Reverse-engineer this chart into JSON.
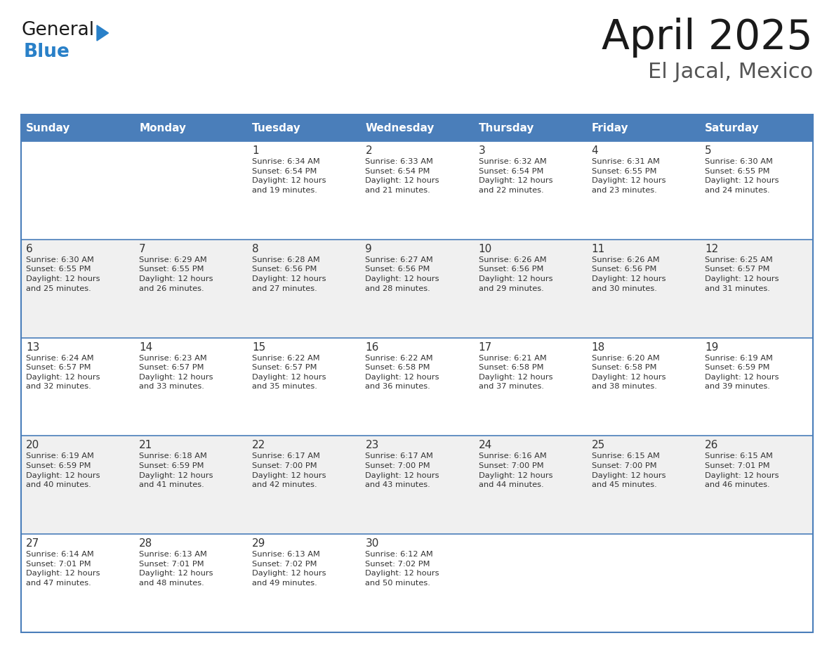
{
  "title": "April 2025",
  "subtitle": "El Jacal, Mexico",
  "header_color": "#4A7EBA",
  "header_text_color": "#FFFFFF",
  "cell_bg_light": "#F0F0F0",
  "cell_bg_white": "#FFFFFF",
  "cell_text_color": "#333333",
  "day_headers": [
    "Sunday",
    "Monday",
    "Tuesday",
    "Wednesday",
    "Thursday",
    "Friday",
    "Saturday"
  ],
  "weeks": [
    [
      {
        "day": "",
        "info": ""
      },
      {
        "day": "",
        "info": ""
      },
      {
        "day": "1",
        "info": "Sunrise: 6:34 AM\nSunset: 6:54 PM\nDaylight: 12 hours\nand 19 minutes."
      },
      {
        "day": "2",
        "info": "Sunrise: 6:33 AM\nSunset: 6:54 PM\nDaylight: 12 hours\nand 21 minutes."
      },
      {
        "day": "3",
        "info": "Sunrise: 6:32 AM\nSunset: 6:54 PM\nDaylight: 12 hours\nand 22 minutes."
      },
      {
        "day": "4",
        "info": "Sunrise: 6:31 AM\nSunset: 6:55 PM\nDaylight: 12 hours\nand 23 minutes."
      },
      {
        "day": "5",
        "info": "Sunrise: 6:30 AM\nSunset: 6:55 PM\nDaylight: 12 hours\nand 24 minutes."
      }
    ],
    [
      {
        "day": "6",
        "info": "Sunrise: 6:30 AM\nSunset: 6:55 PM\nDaylight: 12 hours\nand 25 minutes."
      },
      {
        "day": "7",
        "info": "Sunrise: 6:29 AM\nSunset: 6:55 PM\nDaylight: 12 hours\nand 26 minutes."
      },
      {
        "day": "8",
        "info": "Sunrise: 6:28 AM\nSunset: 6:56 PM\nDaylight: 12 hours\nand 27 minutes."
      },
      {
        "day": "9",
        "info": "Sunrise: 6:27 AM\nSunset: 6:56 PM\nDaylight: 12 hours\nand 28 minutes."
      },
      {
        "day": "10",
        "info": "Sunrise: 6:26 AM\nSunset: 6:56 PM\nDaylight: 12 hours\nand 29 minutes."
      },
      {
        "day": "11",
        "info": "Sunrise: 6:26 AM\nSunset: 6:56 PM\nDaylight: 12 hours\nand 30 minutes."
      },
      {
        "day": "12",
        "info": "Sunrise: 6:25 AM\nSunset: 6:57 PM\nDaylight: 12 hours\nand 31 minutes."
      }
    ],
    [
      {
        "day": "13",
        "info": "Sunrise: 6:24 AM\nSunset: 6:57 PM\nDaylight: 12 hours\nand 32 minutes."
      },
      {
        "day": "14",
        "info": "Sunrise: 6:23 AM\nSunset: 6:57 PM\nDaylight: 12 hours\nand 33 minutes."
      },
      {
        "day": "15",
        "info": "Sunrise: 6:22 AM\nSunset: 6:57 PM\nDaylight: 12 hours\nand 35 minutes."
      },
      {
        "day": "16",
        "info": "Sunrise: 6:22 AM\nSunset: 6:58 PM\nDaylight: 12 hours\nand 36 minutes."
      },
      {
        "day": "17",
        "info": "Sunrise: 6:21 AM\nSunset: 6:58 PM\nDaylight: 12 hours\nand 37 minutes."
      },
      {
        "day": "18",
        "info": "Sunrise: 6:20 AM\nSunset: 6:58 PM\nDaylight: 12 hours\nand 38 minutes."
      },
      {
        "day": "19",
        "info": "Sunrise: 6:19 AM\nSunset: 6:59 PM\nDaylight: 12 hours\nand 39 minutes."
      }
    ],
    [
      {
        "day": "20",
        "info": "Sunrise: 6:19 AM\nSunset: 6:59 PM\nDaylight: 12 hours\nand 40 minutes."
      },
      {
        "day": "21",
        "info": "Sunrise: 6:18 AM\nSunset: 6:59 PM\nDaylight: 12 hours\nand 41 minutes."
      },
      {
        "day": "22",
        "info": "Sunrise: 6:17 AM\nSunset: 7:00 PM\nDaylight: 12 hours\nand 42 minutes."
      },
      {
        "day": "23",
        "info": "Sunrise: 6:17 AM\nSunset: 7:00 PM\nDaylight: 12 hours\nand 43 minutes."
      },
      {
        "day": "24",
        "info": "Sunrise: 6:16 AM\nSunset: 7:00 PM\nDaylight: 12 hours\nand 44 minutes."
      },
      {
        "day": "25",
        "info": "Sunrise: 6:15 AM\nSunset: 7:00 PM\nDaylight: 12 hours\nand 45 minutes."
      },
      {
        "day": "26",
        "info": "Sunrise: 6:15 AM\nSunset: 7:01 PM\nDaylight: 12 hours\nand 46 minutes."
      }
    ],
    [
      {
        "day": "27",
        "info": "Sunrise: 6:14 AM\nSunset: 7:01 PM\nDaylight: 12 hours\nand 47 minutes."
      },
      {
        "day": "28",
        "info": "Sunrise: 6:13 AM\nSunset: 7:01 PM\nDaylight: 12 hours\nand 48 minutes."
      },
      {
        "day": "29",
        "info": "Sunrise: 6:13 AM\nSunset: 7:02 PM\nDaylight: 12 hours\nand 49 minutes."
      },
      {
        "day": "30",
        "info": "Sunrise: 6:12 AM\nSunset: 7:02 PM\nDaylight: 12 hours\nand 50 minutes."
      },
      {
        "day": "",
        "info": ""
      },
      {
        "day": "",
        "info": ""
      },
      {
        "day": "",
        "info": ""
      }
    ]
  ],
  "logo_general_color": "#1a1a1a",
  "logo_blue_color": "#2980C8",
  "logo_triangle_color": "#2980C8",
  "separator_color": "#4A7EBA",
  "title_color": "#1a1a1a",
  "subtitle_color": "#555555"
}
